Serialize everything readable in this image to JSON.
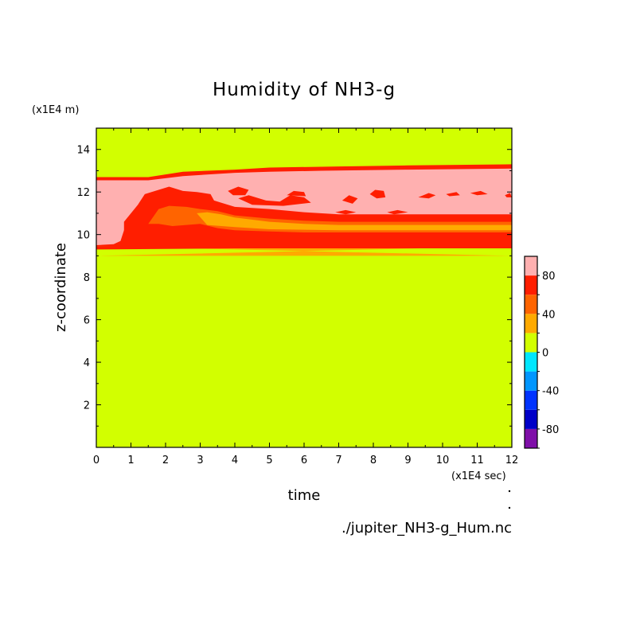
{
  "chart_data": {
    "type": "heatmap",
    "title": "Humidity of NH3-g",
    "xlabel": "time",
    "ylabel": "z-coordinate",
    "x_unit": "(x1E4 sec)",
    "y_unit": "(x1E4 m)",
    "xlim": [
      0,
      12
    ],
    "ylim": [
      0,
      15
    ],
    "x_ticks": [
      "0",
      "1",
      "2",
      "3",
      "4",
      "5",
      "6",
      "7",
      "8",
      "9",
      "10",
      "11",
      "12"
    ],
    "y_ticks": [
      "2",
      "4",
      "6",
      "8",
      "10",
      "12",
      "14"
    ],
    "background_value_range": [
      0,
      20
    ],
    "colorbar": {
      "range": [
        -100,
        100
      ],
      "labels": [
        "80",
        "40",
        "0",
        "-40",
        "-80"
      ],
      "levels": [
        {
          "from": -100,
          "to": -80,
          "color": "#7f0fa8"
        },
        {
          "from": -80,
          "to": -60,
          "color": "#0000c8"
        },
        {
          "from": -60,
          "to": -40,
          "color": "#0033ff"
        },
        {
          "from": -40,
          "to": -20,
          "color": "#0096ff"
        },
        {
          "from": -20,
          "to": 0,
          "color": "#00e6ff"
        },
        {
          "from": 0,
          "to": 20,
          "color": "#d2ff00"
        },
        {
          "from": 20,
          "to": 40,
          "color": "#ffaa00"
        },
        {
          "from": 40,
          "to": 60,
          "color": "#ff6400"
        },
        {
          "from": 60,
          "to": 80,
          "color": "#ff1e00"
        },
        {
          "from": 80,
          "to": 100,
          "color": "#ffb0b0"
        }
      ]
    },
    "regions": [
      {
        "level": 20,
        "upper": [
          [
            0,
            9.45
          ],
          [
            12,
            9.45
          ]
        ],
        "lower": [
          [
            0,
            9.0
          ],
          [
            12,
            9.0
          ]
        ]
      },
      {
        "level": 60,
        "upper": [
          [
            0,
            12.7
          ],
          [
            1.5,
            12.7
          ],
          [
            2.5,
            12.95
          ],
          [
            4,
            13.05
          ],
          [
            5,
            13.15
          ],
          [
            7,
            13.2
          ],
          [
            9,
            13.25
          ],
          [
            12,
            13.3
          ]
        ],
        "lower": [
          [
            12,
            9.45
          ],
          [
            0,
            9.45
          ]
        ]
      },
      {
        "level": 80,
        "upper": [
          [
            0,
            12.55
          ],
          [
            1.5,
            12.55
          ],
          [
            2.5,
            12.75
          ],
          [
            4,
            12.9
          ],
          [
            5,
            12.95
          ],
          [
            6.5,
            13.0
          ],
          [
            9,
            13.05
          ],
          [
            12,
            13.1
          ]
        ],
        "lower": [
          [
            12,
            10.9
          ],
          [
            10,
            10.85
          ],
          [
            9,
            10.8
          ],
          [
            7,
            10.75
          ],
          [
            6,
            10.75
          ],
          [
            5,
            10.75
          ],
          [
            4,
            10.8
          ],
          [
            3,
            10.9
          ],
          [
            2,
            10.9
          ],
          [
            1,
            10.7
          ],
          [
            0.8,
            10.2
          ],
          [
            0.7,
            9.7
          ],
          [
            0.5,
            9.55
          ],
          [
            0,
            9.5
          ]
        ]
      },
      {
        "level": 60,
        "upper": [
          [
            0.8,
            10.6
          ],
          [
            1.2,
            11.4
          ],
          [
            1.4,
            11.9
          ],
          [
            1.8,
            12.1
          ],
          [
            2.1,
            12.25
          ],
          [
            2.5,
            12.05
          ],
          [
            2.9,
            12.0
          ],
          [
            3.3,
            11.9
          ],
          [
            3.4,
            11.6
          ],
          [
            4,
            11.3
          ],
          [
            5,
            11.2
          ],
          [
            6,
            11.05
          ],
          [
            7,
            10.95
          ],
          [
            9,
            10.95
          ],
          [
            12,
            10.95
          ]
        ],
        "lower": [
          [
            12,
            9.95
          ],
          [
            10,
            9.95
          ],
          [
            8,
            9.95
          ],
          [
            6,
            9.9
          ],
          [
            4,
            9.8
          ],
          [
            3,
            9.8
          ],
          [
            2.5,
            9.7
          ],
          [
            2,
            9.75
          ],
          [
            1.5,
            9.7
          ],
          [
            1,
            9.7
          ],
          [
            0.85,
            9.8
          ],
          [
            0.8,
            10.2
          ]
        ]
      },
      {
        "level": 40,
        "upper": [
          [
            1.5,
            10.5
          ],
          [
            1.8,
            11.2
          ],
          [
            2.1,
            11.35
          ],
          [
            2.6,
            11.3
          ],
          [
            3.0,
            11.2
          ],
          [
            3.5,
            11.1
          ],
          [
            4,
            10.9
          ],
          [
            5,
            10.75
          ],
          [
            6,
            10.65
          ],
          [
            7,
            10.6
          ],
          [
            9,
            10.6
          ],
          [
            12,
            10.6
          ]
        ],
        "lower": [
          [
            12,
            10.1
          ],
          [
            9,
            10.1
          ],
          [
            7,
            10.1
          ],
          [
            6,
            10.1
          ],
          [
            5,
            10.15
          ],
          [
            4,
            10.2
          ],
          [
            3.5,
            10.3
          ],
          [
            3,
            10.5
          ],
          [
            2.6,
            10.45
          ],
          [
            2.2,
            10.4
          ],
          [
            1.8,
            10.5
          ]
        ]
      },
      {
        "level": 20,
        "upper": [
          [
            2.9,
            11.0
          ],
          [
            3.2,
            11.05
          ],
          [
            3.6,
            10.95
          ],
          [
            4,
            10.8
          ],
          [
            5,
            10.6
          ],
          [
            6,
            10.5
          ],
          [
            7,
            10.45
          ],
          [
            9,
            10.45
          ],
          [
            12,
            10.45
          ]
        ],
        "lower": [
          [
            12,
            10.2
          ],
          [
            9,
            10.2
          ],
          [
            7,
            10.2
          ],
          [
            5,
            10.25
          ],
          [
            4,
            10.35
          ],
          [
            3.2,
            10.45
          ]
        ]
      },
      {
        "level": 60,
        "upper": [
          [
            0,
            9.45
          ],
          [
            4,
            9.55
          ],
          [
            8,
            9.6
          ],
          [
            12,
            9.6
          ]
        ],
        "lower": [
          [
            12,
            9.35
          ],
          [
            8,
            9.35
          ],
          [
            4,
            9.35
          ],
          [
            0,
            9.3
          ]
        ]
      }
    ],
    "blobs": [
      {
        "level": 60,
        "points": [
          [
            3.8,
            12.05
          ],
          [
            4.1,
            12.25
          ],
          [
            4.4,
            12.1
          ],
          [
            4.3,
            11.85
          ],
          [
            3.95,
            11.85
          ]
        ]
      },
      {
        "level": 60,
        "points": [
          [
            4.1,
            11.7
          ],
          [
            4.4,
            11.85
          ],
          [
            4.9,
            11.6
          ],
          [
            5.3,
            11.55
          ],
          [
            5.6,
            11.85
          ],
          [
            6.0,
            11.75
          ],
          [
            6.2,
            11.5
          ],
          [
            5.4,
            11.35
          ],
          [
            4.5,
            11.4
          ]
        ]
      },
      {
        "level": 60,
        "points": [
          [
            5.5,
            11.85
          ],
          [
            5.7,
            12.05
          ],
          [
            6.0,
            12.0
          ],
          [
            6.05,
            11.8
          ]
        ]
      },
      {
        "level": 60,
        "points": [
          [
            7.1,
            11.6
          ],
          [
            7.3,
            11.85
          ],
          [
            7.55,
            11.7
          ],
          [
            7.4,
            11.45
          ]
        ]
      },
      {
        "level": 60,
        "points": [
          [
            7.9,
            11.9
          ],
          [
            8.05,
            12.1
          ],
          [
            8.3,
            12.05
          ],
          [
            8.35,
            11.75
          ],
          [
            8.1,
            11.7
          ]
        ]
      },
      {
        "level": 60,
        "points": [
          [
            9.3,
            11.75
          ],
          [
            9.6,
            11.95
          ],
          [
            9.8,
            11.85
          ],
          [
            9.6,
            11.7
          ]
        ]
      },
      {
        "level": 60,
        "points": [
          [
            10.1,
            11.9
          ],
          [
            10.4,
            12.0
          ],
          [
            10.5,
            11.85
          ],
          [
            10.2,
            11.8
          ]
        ]
      },
      {
        "level": 60,
        "points": [
          [
            10.8,
            11.95
          ],
          [
            11.1,
            12.05
          ],
          [
            11.3,
            11.9
          ],
          [
            11.0,
            11.85
          ]
        ]
      },
      {
        "level": 60,
        "points": [
          [
            11.8,
            11.85
          ],
          [
            11.95,
            11.95
          ],
          [
            12,
            11.75
          ],
          [
            11.85,
            11.75
          ]
        ]
      },
      {
        "level": 60,
        "points": [
          [
            6.9,
            11.05
          ],
          [
            7.2,
            11.15
          ],
          [
            7.5,
            11.05
          ],
          [
            7.2,
            10.95
          ]
        ]
      },
      {
        "level": 60,
        "points": [
          [
            8.4,
            11.05
          ],
          [
            8.7,
            11.15
          ],
          [
            9.0,
            11.05
          ],
          [
            8.6,
            10.95
          ]
        ]
      }
    ]
  },
  "footer": {
    "filename": "./jupiter_NH3-g_Hum.nc"
  }
}
